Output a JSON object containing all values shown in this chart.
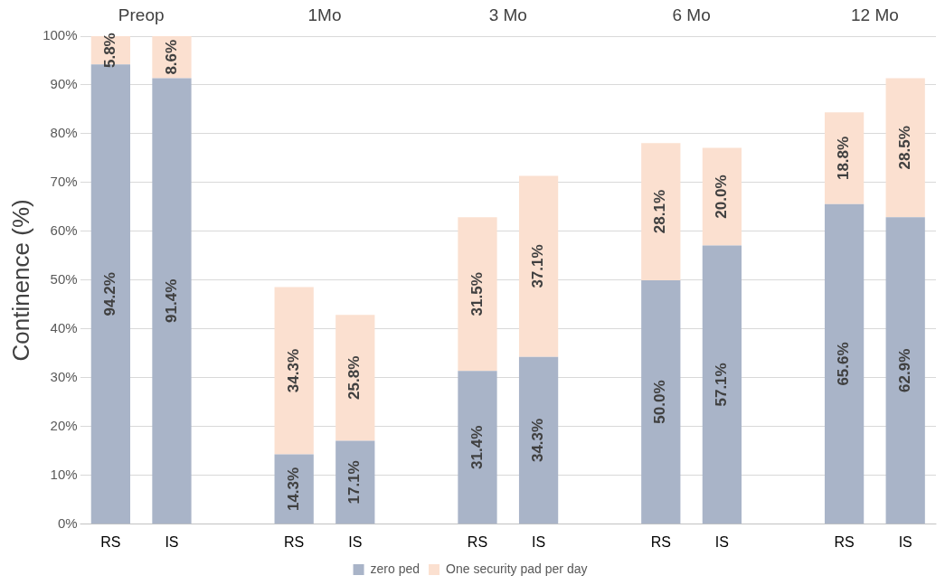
{
  "chart_data": {
    "type": "bar",
    "stacked": true,
    "ylabel": "Continence (%)",
    "categories": [
      "RS",
      "IS",
      null,
      "RS",
      "IS",
      null,
      "RS",
      "IS",
      null,
      "RS",
      "IS",
      null,
      "RS",
      "IS"
    ],
    "series": [
      {
        "name": "zero ped",
        "color": "#a9b4c8",
        "values": [
          94.2,
          91.4,
          null,
          14.3,
          17.1,
          null,
          31.4,
          34.3,
          null,
          50.0,
          57.1,
          null,
          65.6,
          62.9
        ],
        "value_labels": [
          "94.2%",
          "91.4%",
          null,
          "14.3%",
          "17.1%",
          null,
          "31.4%",
          "34.3%",
          null,
          "50.0%",
          "57.1%",
          null,
          "65.6%",
          "62.9%"
        ]
      },
      {
        "name": "One security pad per day",
        "color": "#fbe0d0",
        "values": [
          5.8,
          8.6,
          null,
          34.3,
          25.8,
          null,
          31.5,
          37.1,
          null,
          28.1,
          20.0,
          null,
          18.8,
          28.5
        ],
        "value_labels": [
          "5.8%",
          "8.6%",
          null,
          "34.3%",
          "25.8%",
          null,
          "31.5%",
          "37.1%",
          null,
          "28.1%",
          "20.0%",
          null,
          "18.8%",
          "28.5%"
        ]
      }
    ],
    "ylim": [
      0,
      100
    ],
    "yticks": [
      {
        "value": 0,
        "label": "0%"
      },
      {
        "value": 10,
        "label": "10%"
      },
      {
        "value": 20,
        "label": "20%"
      },
      {
        "value": 30,
        "label": "30%"
      },
      {
        "value": 40,
        "label": "40%"
      },
      {
        "value": 50,
        "label": "50%"
      },
      {
        "value": 60,
        "label": "60%"
      },
      {
        "value": 70,
        "label": "70%"
      },
      {
        "value": 80,
        "label": "80%"
      },
      {
        "value": 90,
        "label": "90%"
      },
      {
        "value": 100,
        "label": "100%"
      }
    ],
    "grid": "y",
    "legend": "bottom",
    "annotations": [
      "Preop",
      "1Mo",
      "3 Mo",
      "6 Mo",
      "12 Mo"
    ]
  }
}
